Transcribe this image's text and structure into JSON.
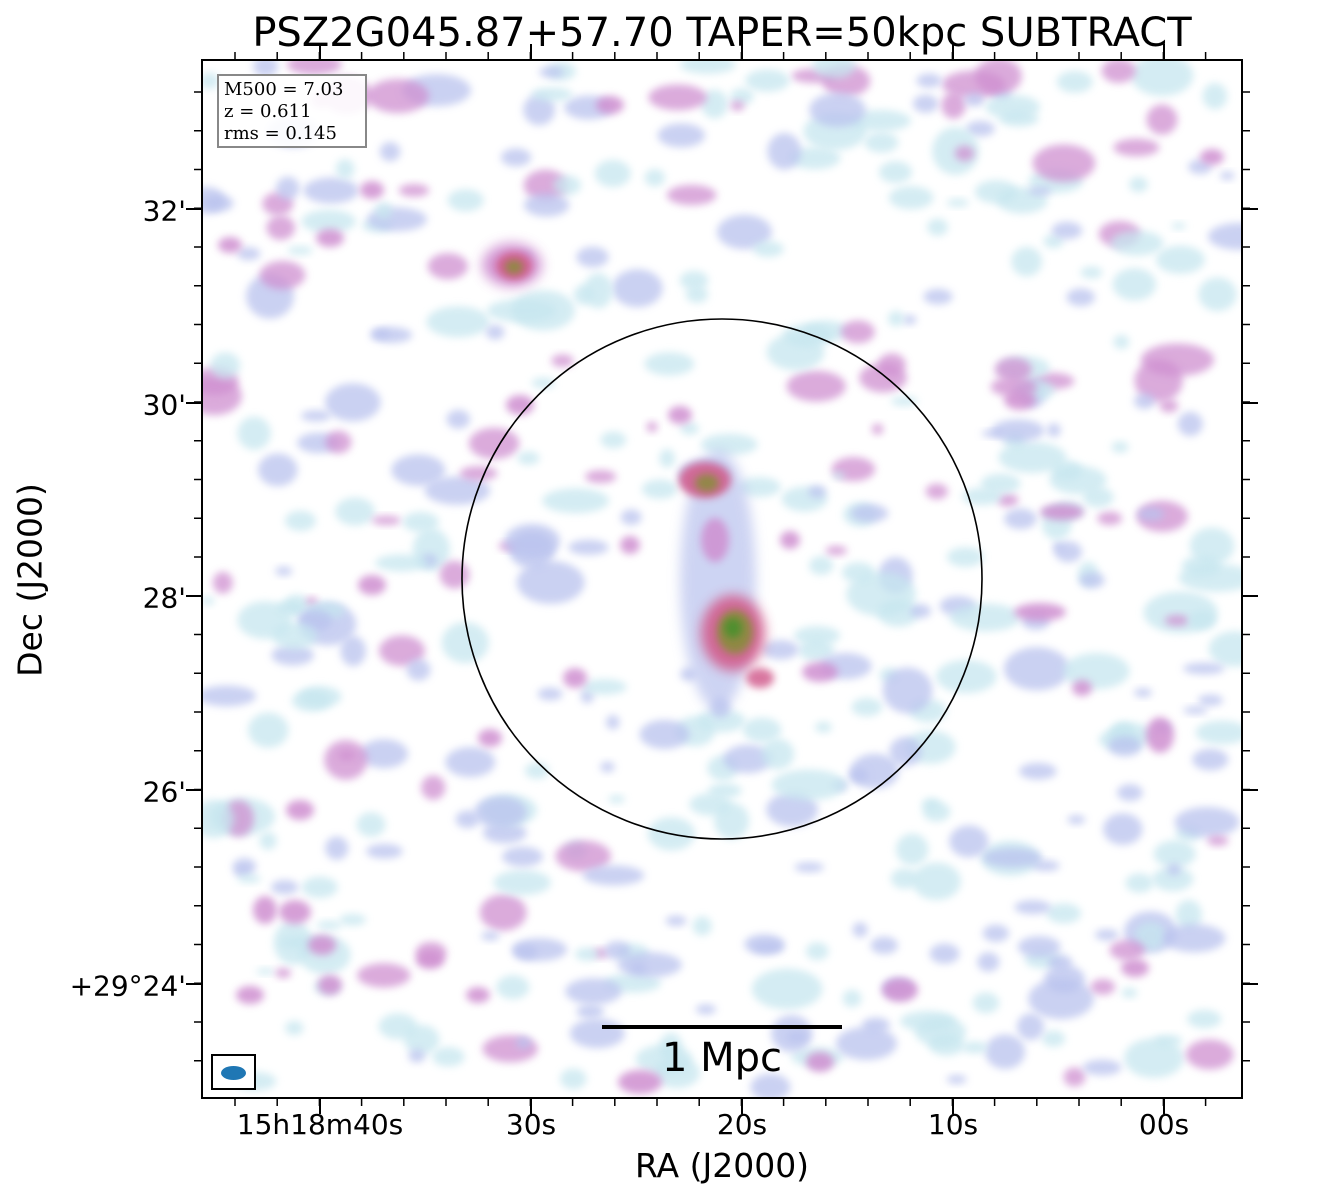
{
  "title": "PSZ2G045.87+57.70 TAPER=50kpc SUBTRACT",
  "axes": {
    "x_label": "RA (J2000)",
    "y_label": "Dec (J2000)",
    "x_ticks": [
      "15h18m40s",
      "30s",
      "20s",
      "10s",
      "00s"
    ],
    "y_ticks": [
      "32'",
      "30'",
      "28'",
      "26'",
      "+29°24'"
    ]
  },
  "info_box": {
    "mass": "M500 = 7.03",
    "redshift": "z = 0.611",
    "rms": "rms = 0.145"
  },
  "scalebar": {
    "label": "1 Mpc"
  },
  "colors": {
    "low": "#c6e6ef",
    "mid_low": "#b9c2ee",
    "mid": "#cf8fd0",
    "mid_high": "#d25f8f",
    "high": "#8c8a3f",
    "peak": "#4f8f2e",
    "beam": "#1f77b4"
  },
  "icons": {
    "beam": "beam-ellipse-icon"
  }
}
